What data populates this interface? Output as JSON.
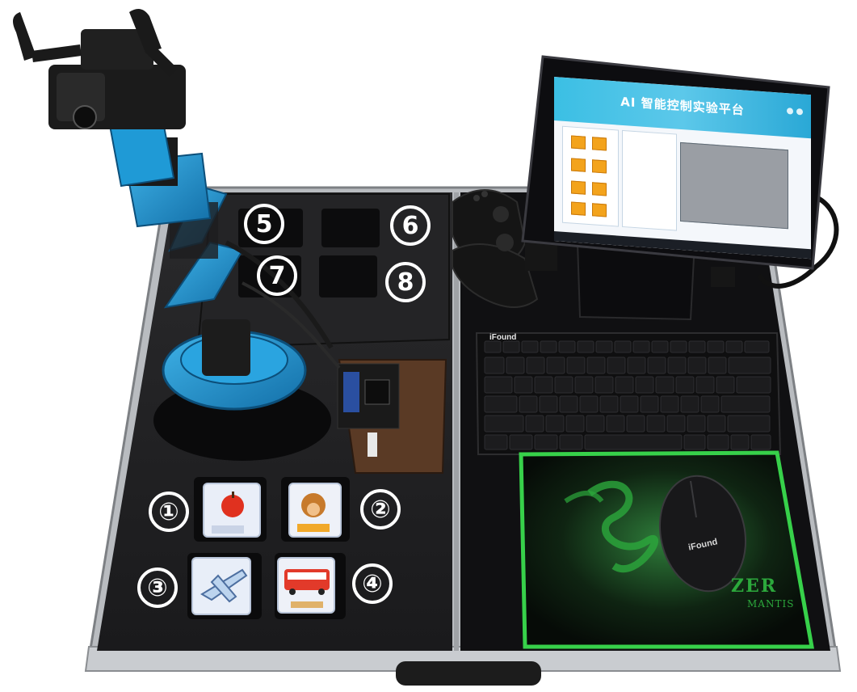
{
  "photo": {
    "subject": "AI robotic arm training kit in an open carry case",
    "background_color": "#ffffff",
    "case_color": "#1c1c1e",
    "arm_color": "#1f9ad6"
  },
  "slot_badges": [
    "①",
    "②",
    "③",
    "④",
    "5",
    "6",
    "7",
    "8"
  ],
  "tablet": {
    "title": "AI 智能控制实验平台"
  },
  "keyboard": {
    "brand": "iFound"
  },
  "mouse": {
    "brand": "iFound"
  },
  "mousepad": {
    "text_a": "ZER",
    "text_b": "MANTIS",
    "accent_color": "#37d14a"
  }
}
